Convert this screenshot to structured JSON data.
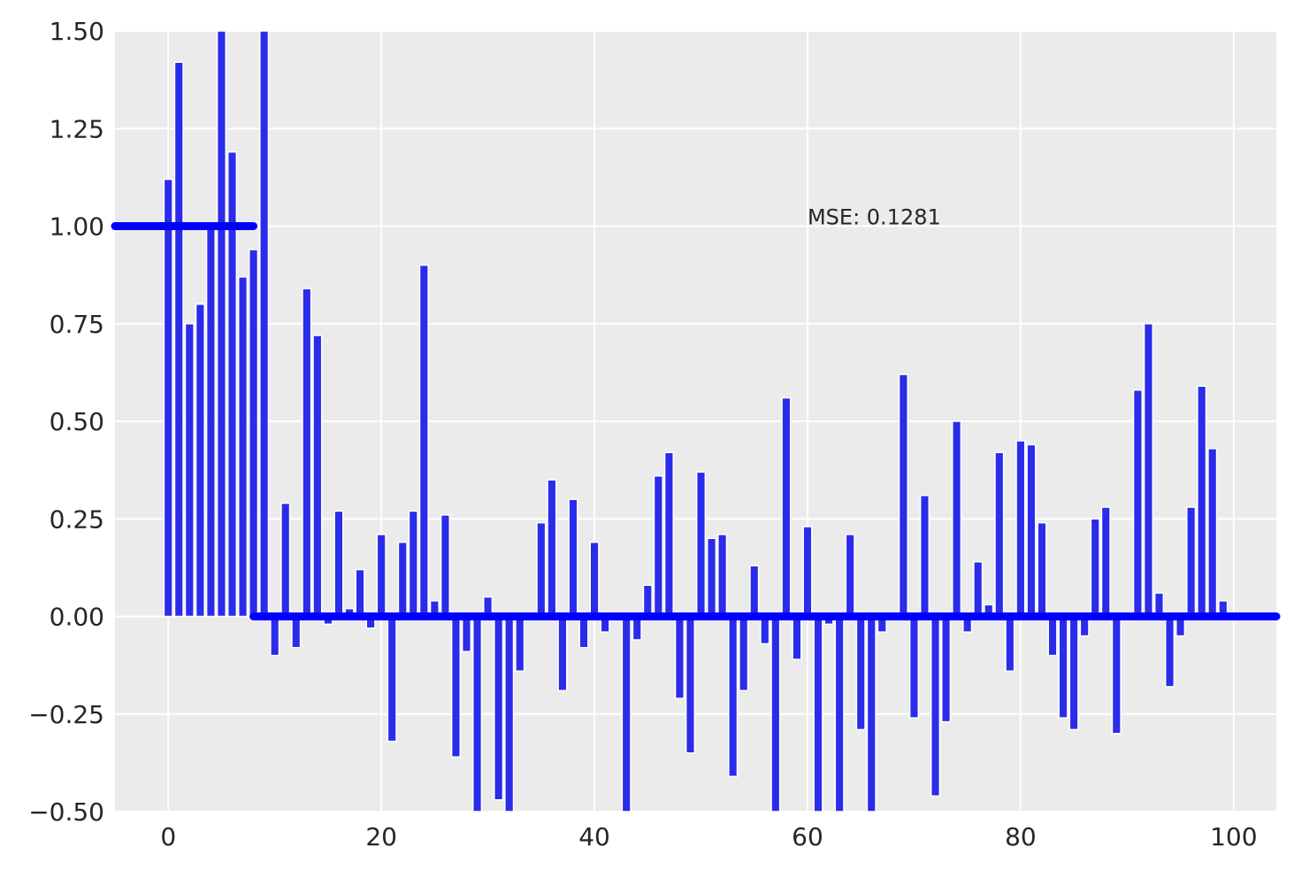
{
  "chart_data": {
    "type": "bar",
    "title": "",
    "xlabel": "",
    "ylabel": "",
    "xlim": [
      -5,
      104
    ],
    "ylim": [
      -0.5,
      1.5
    ],
    "xticks": [
      0,
      20,
      40,
      60,
      80,
      100
    ],
    "yticks": [
      -0.5,
      -0.25,
      0.0,
      0.25,
      0.5,
      0.75,
      1.0,
      1.25,
      1.5
    ],
    "xtick_labels": [
      "0",
      "20",
      "40",
      "60",
      "80",
      "100"
    ],
    "ytick_labels": [
      "−0.50",
      "−0.25",
      "0.00",
      "0.25",
      "0.50",
      "0.75",
      "1.00",
      "1.25",
      "1.50"
    ],
    "grid": true,
    "background": "#ebebeb",
    "bar_color": "#2b2bea",
    "line_color": "#0000ff",
    "annotation": {
      "text": "MSE: 0.1281",
      "x": 60,
      "y": 1.0
    },
    "bars": {
      "x": [
        0,
        1,
        2,
        3,
        4,
        5,
        6,
        7,
        8,
        9,
        10,
        11,
        12,
        13,
        14,
        15,
        16,
        17,
        18,
        19,
        20,
        21,
        22,
        23,
        24,
        25,
        26,
        27,
        28,
        29,
        30,
        31,
        32,
        33,
        34,
        35,
        36,
        37,
        38,
        39,
        40,
        41,
        42,
        43,
        44,
        45,
        46,
        47,
        48,
        49,
        50,
        51,
        52,
        53,
        54,
        55,
        56,
        57,
        58,
        59,
        60,
        61,
        62,
        63,
        64,
        65,
        66,
        67,
        68,
        69,
        70,
        71,
        72,
        73,
        74,
        75,
        76,
        77,
        78,
        79,
        80,
        81,
        82,
        83,
        84,
        85,
        86,
        87,
        88,
        89,
        90,
        91,
        92,
        93,
        94,
        95,
        96,
        97,
        98,
        99
      ],
      "values": [
        1.12,
        1.42,
        0.75,
        0.8,
        1.0,
        1.5,
        1.19,
        0.87,
        0.94,
        1.5,
        -0.1,
        0.29,
        -0.08,
        0.84,
        0.72,
        -0.02,
        0.27,
        0.02,
        0.12,
        -0.03,
        0.21,
        -0.32,
        0.19,
        0.27,
        0.9,
        0.04,
        0.26,
        -0.36,
        -0.09,
        -0.5,
        0.05,
        -0.47,
        -0.5,
        -0.14,
        0.0,
        0.24,
        0.35,
        -0.19,
        0.3,
        -0.08,
        0.19,
        -0.04,
        0.0,
        -0.5,
        -0.06,
        0.08,
        0.36,
        0.42,
        -0.21,
        -0.35,
        0.37,
        0.2,
        0.21,
        -0.41,
        -0.19,
        0.13,
        -0.07,
        -0.5,
        0.56,
        -0.11,
        0.23,
        -0.5,
        -0.02,
        -0.5,
        0.21,
        -0.29,
        -0.5,
        -0.04,
        0.0,
        0.62,
        -0.26,
        0.31,
        -0.46,
        -0.27,
        0.5,
        -0.04,
        0.14,
        0.03,
        0.42,
        -0.14,
        0.45,
        0.44,
        0.24,
        -0.1,
        -0.26,
        -0.29,
        -0.05,
        0.25,
        0.28,
        -0.3,
        -0.01,
        0.58,
        0.75,
        0.06,
        -0.18,
        -0.05,
        0.28,
        0.59,
        0.43,
        0.04
      ]
    },
    "series": [
      {
        "values_x": [
          -5,
          8
        ],
        "values_y": [
          1.0,
          1.0
        ]
      },
      {
        "values_x": [
          8,
          104
        ],
        "values_y": [
          0.0,
          0.0
        ]
      }
    ]
  }
}
